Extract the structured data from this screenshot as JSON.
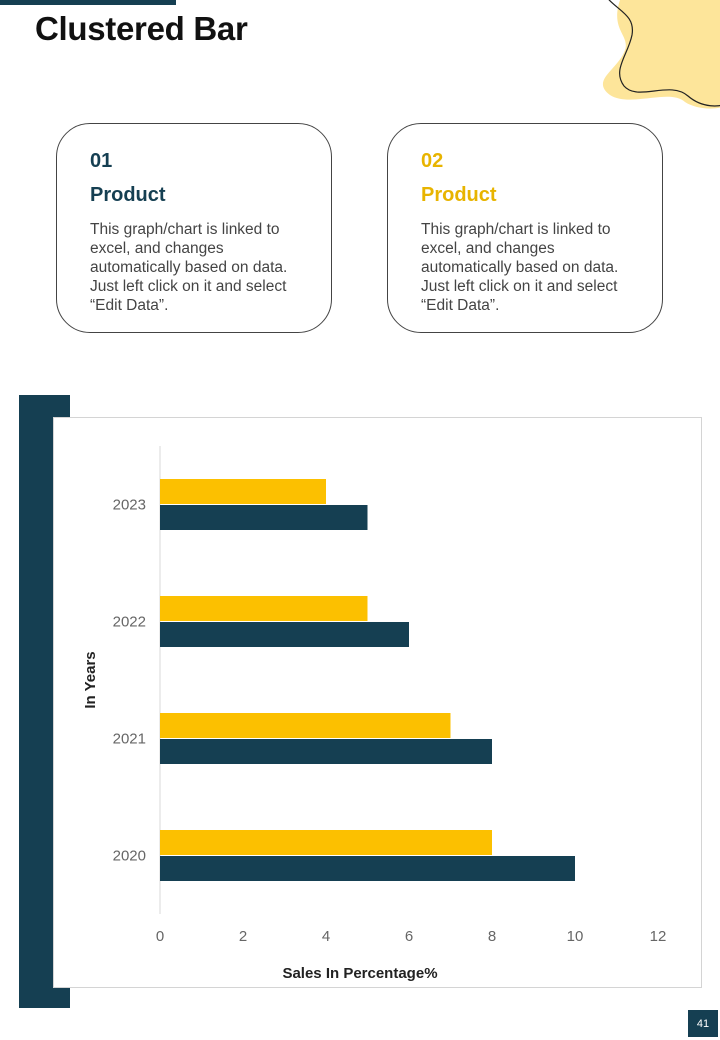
{
  "page": {
    "title": "Clustered Bar",
    "page_number": "41"
  },
  "cards": [
    {
      "number": "01",
      "heading": "Product",
      "text": "This graph/chart is linked to excel, and changes automatically based on data. Just left click on it and select “Edit Data”."
    },
    {
      "number": "02",
      "heading": "Product",
      "text": "This graph/chart is linked to excel, and changes automatically based on data. Just left click on it and select “Edit Data”."
    }
  ],
  "colors": {
    "dark": "#153f52",
    "gold": "#fcc000",
    "blob": "#fde59a"
  },
  "chart_data": {
    "type": "bar",
    "orientation": "horizontal",
    "categories": [
      "2020",
      "2021",
      "2022",
      "2023"
    ],
    "series": [
      {
        "values": [
          10,
          8,
          6,
          5
        ],
        "color": "#153f52"
      },
      {
        "values": [
          8,
          7,
          5,
          4
        ],
        "color": "#fcc000"
      }
    ],
    "xlabel": "Sales In Percentage%",
    "ylabel": "In Years",
    "xlim": [
      0,
      12
    ],
    "xticks": [
      0,
      2,
      4,
      6,
      8,
      10,
      12
    ],
    "grid": false,
    "legend": "none"
  }
}
